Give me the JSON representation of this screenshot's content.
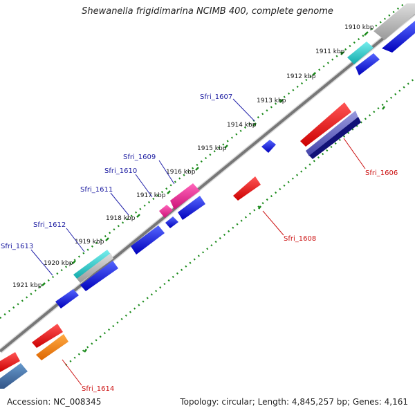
{
  "title": "Shewanella frigidimarina NCIMB 400, complete genome",
  "footer": {
    "accession": "Accession: NC_008345",
    "summary": "Topology: circular; Length: 4,845,257 bp; Genes: 4,161"
  },
  "colors": {
    "backbone": "#808080",
    "tick_track": "#1a8a1a",
    "forward_label": "#1a1aa0",
    "reverse_label": "#cc1111",
    "blue": "#1111dd",
    "red": "#ee1111",
    "cyan": "#22cccc",
    "magenta": "#ee2299",
    "gray": "#bbbbbb",
    "orange": "#ff8800",
    "steelblue": "#4477aa",
    "slate": "#6666bb",
    "navy": "#111177"
  },
  "kbp_marks": [
    "1910 kbp",
    "1911 kbp",
    "1912 kbp",
    "1913 kbp",
    "1914 kbp",
    "1915 kbp",
    "1916 kbp",
    "1917 kbp",
    "1918 kbp",
    "1919 kbp",
    "1920 kbp",
    "1921 kbp"
  ],
  "gene_labels": {
    "forward": [
      "Sfri_1607",
      "Sfri_1609",
      "Sfri_1610",
      "Sfri_1611",
      "Sfri_1612",
      "Sfri_1613"
    ],
    "reverse": [
      "Sfri_1606",
      "Sfri_1608",
      "Sfri_1614"
    ]
  }
}
